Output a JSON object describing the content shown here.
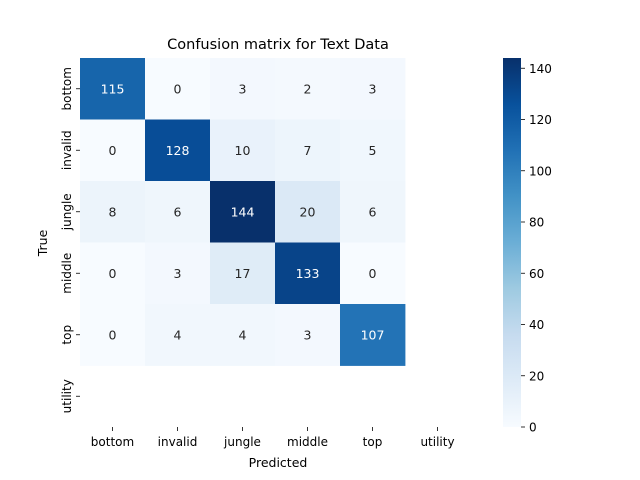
{
  "chart_data": {
    "type": "heatmap",
    "title": "Confusion matrix for Text Data",
    "xlabel": "Predicted",
    "ylabel": "True",
    "x_categories": [
      "bottom",
      "invalid",
      "jungle",
      "middle",
      "top",
      "utility"
    ],
    "y_categories": [
      "bottom",
      "invalid",
      "jungle",
      "middle",
      "top",
      "utility"
    ],
    "matrix": [
      [
        115,
        0,
        3,
        2,
        3,
        null
      ],
      [
        0,
        128,
        10,
        7,
        5,
        null
      ],
      [
        8,
        6,
        144,
        20,
        6,
        null
      ],
      [
        0,
        3,
        17,
        133,
        0,
        null
      ],
      [
        0,
        4,
        4,
        3,
        107,
        null
      ],
      [
        null,
        null,
        null,
        null,
        null,
        null
      ]
    ],
    "colormap": "Blues",
    "value_range": [
      0,
      144
    ],
    "colorbar_ticks": [
      "0",
      "20",
      "40",
      "60",
      "80",
      "100",
      "120",
      "140"
    ],
    "colorbar_tick_values": [
      0,
      20,
      40,
      60,
      80,
      100,
      120,
      140
    ],
    "colors": {
      "low": "#f7fbff",
      "high": "#08306b",
      "text_dark": "#262626",
      "text_light": "#ffffff"
    }
  }
}
